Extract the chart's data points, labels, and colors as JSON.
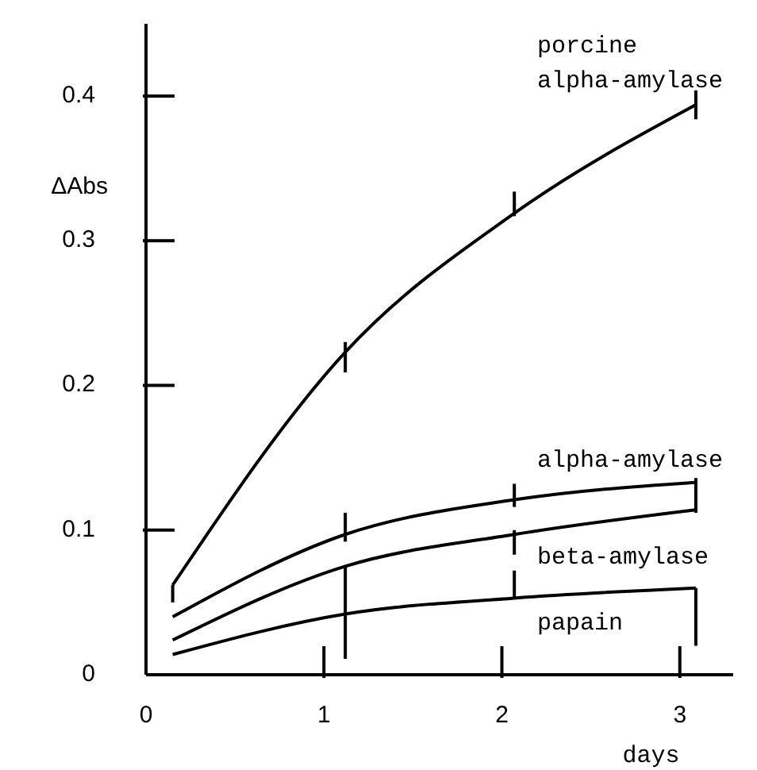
{
  "chart_data": {
    "type": "line",
    "xlabel": "days",
    "ylabel": "ΔAbs",
    "x": [
      0.15,
      1.12,
      2.07,
      3.09
    ],
    "xlim": [
      0,
      3.3
    ],
    "xticks": [
      0,
      1,
      2,
      3
    ],
    "ylim": [
      0,
      0.45
    ],
    "yticks": [
      0,
      0.1,
      0.2,
      0.3,
      0.4
    ],
    "grid": false,
    "legend": false,
    "marker": "none",
    "line_style": "solid",
    "series": [
      {
        "name": "porcine alpha-amylase",
        "color": "#000000",
        "values": [
          0.062,
          0.223,
          0.319,
          0.394
        ],
        "errors": [
          [
            0.05,
            0.062
          ],
          [
            0.209,
            0.23
          ],
          [
            0.317,
            0.334
          ],
          [
            0.384,
            0.404
          ]
        ]
      },
      {
        "name": "alpha-amylase",
        "color": "#000000",
        "values": [
          0.04,
          0.097,
          0.121,
          0.133
        ],
        "errors": [
          null,
          [
            0.092,
            0.112
          ],
          [
            0.116,
            0.132
          ],
          [
            0.112,
            0.136
          ]
        ]
      },
      {
        "name": "beta-amylase",
        "color": "#000000",
        "values": [
          0.024,
          0.075,
          0.097,
          0.114
        ],
        "errors": [
          null,
          [
            0.011,
            0.075
          ],
          [
            0.083,
            0.1
          ],
          null
        ]
      },
      {
        "name": "papain",
        "color": "#000000",
        "values": [
          0.014,
          0.042,
          0.053,
          0.06
        ],
        "errors": [
          null,
          null,
          [
            0.053,
            0.072
          ],
          [
            0.02,
            0.06
          ]
        ]
      }
    ]
  }
}
